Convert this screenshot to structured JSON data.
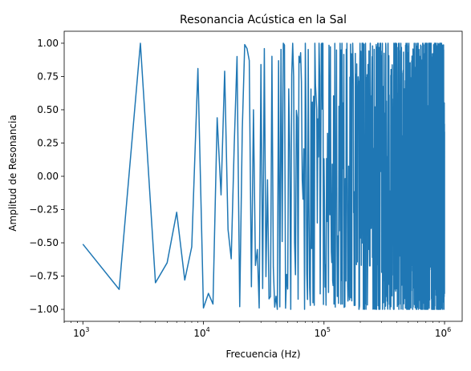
{
  "chart_data": {
    "type": "line",
    "title": "Resonancia Acústica en la Sal",
    "xlabel": "Frecuencia (Hz)",
    "ylabel": "Amplitud de Resonancia",
    "xscale": "log",
    "xlim": [
      700,
      1400000
    ],
    "ylim": [
      -1.09,
      1.09
    ],
    "x_ticks": [
      {
        "value": 1000,
        "base": "10",
        "exp": "3"
      },
      {
        "value": 10000,
        "base": "10",
        "exp": "4"
      },
      {
        "value": 100000,
        "base": "10",
        "exp": "5"
      },
      {
        "value": 1000000,
        "base": "10",
        "exp": "6"
      }
    ],
    "y_ticks": [
      "1.00",
      "0.75",
      "0.50",
      "0.25",
      "0.00",
      "−0.25",
      "−0.50",
      "−0.75",
      "−1.00"
    ],
    "y_tick_values": [
      1.0,
      0.75,
      0.5,
      0.25,
      0.0,
      -0.25,
      -0.5,
      -0.75,
      -1.0
    ],
    "grid": false,
    "legend": "none",
    "series_color": "#1f77b4",
    "x_start": 1000,
    "x_step": 1000,
    "x_end": 1000000,
    "series": [
      {
        "values": [
          -0.51,
          -0.85,
          1.0,
          -0.8,
          -0.65,
          -0.27,
          -0.78,
          -0.53,
          0.81,
          -0.99,
          -0.88,
          -0.96,
          0.44,
          -0.14,
          0.79,
          -0.4,
          -0.62,
          0.23,
          0.9,
          -0.98,
          0.35,
          0.99,
          0.96,
          0.87,
          -0.83,
          0.5,
          -0.67,
          -0.55,
          -0.99,
          0.84
        ]
      }
    ]
  }
}
